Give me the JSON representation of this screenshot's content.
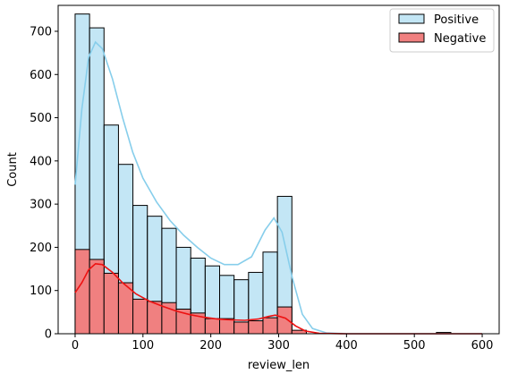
{
  "chart_data": {
    "type": "histogram",
    "xlabel": "review_len",
    "ylabel": "Count",
    "xlim": [
      -25,
      625
    ],
    "ylim": [
      0,
      760
    ],
    "xticks": [
      0,
      100,
      200,
      300,
      400,
      500,
      600
    ],
    "yticks": [
      0,
      100,
      200,
      300,
      400,
      500,
      600,
      700
    ],
    "grid": false,
    "legend_position": "top-right",
    "series": [
      {
        "name": "Positive",
        "color": "#87ceeb",
        "bin_width": 21.3,
        "bins": [
          {
            "x0": 0,
            "value": 740
          },
          {
            "x0": 21.3,
            "value": 708
          },
          {
            "x0": 42.6,
            "value": 483
          },
          {
            "x0": 63.9,
            "value": 392
          },
          {
            "x0": 85.2,
            "value": 297
          },
          {
            "x0": 106.5,
            "value": 272
          },
          {
            "x0": 127.8,
            "value": 244
          },
          {
            "x0": 149.1,
            "value": 200
          },
          {
            "x0": 170.4,
            "value": 175
          },
          {
            "x0": 191.7,
            "value": 157
          },
          {
            "x0": 213.0,
            "value": 135
          },
          {
            "x0": 234.3,
            "value": 125
          },
          {
            "x0": 255.6,
            "value": 142
          },
          {
            "x0": 276.9,
            "value": 189
          },
          {
            "x0": 298.2,
            "value": 318
          },
          {
            "x0": 319.5,
            "value": 5
          }
        ],
        "kde": [
          [
            0,
            345
          ],
          [
            10,
            520
          ],
          [
            20,
            640
          ],
          [
            30,
            675
          ],
          [
            40,
            660
          ],
          [
            55,
            590
          ],
          [
            70,
            500
          ],
          [
            85,
            420
          ],
          [
            100,
            360
          ],
          [
            120,
            305
          ],
          [
            140,
            262
          ],
          [
            160,
            228
          ],
          [
            180,
            200
          ],
          [
            200,
            175
          ],
          [
            220,
            160
          ],
          [
            240,
            160
          ],
          [
            260,
            178
          ],
          [
            280,
            240
          ],
          [
            293,
            268
          ],
          [
            305,
            235
          ],
          [
            320,
            130
          ],
          [
            335,
            45
          ],
          [
            350,
            12
          ],
          [
            370,
            2
          ],
          [
            400,
            0
          ],
          [
            600,
            0
          ]
        ]
      },
      {
        "name": "Negative",
        "color": "#f08080",
        "bin_width": 21.3,
        "bins": [
          {
            "x0": 0,
            "value": 195
          },
          {
            "x0": 21.3,
            "value": 172
          },
          {
            "x0": 42.6,
            "value": 140
          },
          {
            "x0": 63.9,
            "value": 118
          },
          {
            "x0": 85.2,
            "value": 80
          },
          {
            "x0": 106.5,
            "value": 75
          },
          {
            "x0": 127.8,
            "value": 72
          },
          {
            "x0": 149.1,
            "value": 57
          },
          {
            "x0": 170.4,
            "value": 48
          },
          {
            "x0": 191.7,
            "value": 35
          },
          {
            "x0": 213.0,
            "value": 35
          },
          {
            "x0": 234.3,
            "value": 27
          },
          {
            "x0": 255.6,
            "value": 30
          },
          {
            "x0": 276.9,
            "value": 37
          },
          {
            "x0": 298.2,
            "value": 62
          },
          {
            "x0": 319.5,
            "value": 8
          },
          {
            "x0": 532.5,
            "value": 3
          }
        ],
        "kde": [
          [
            0,
            95
          ],
          [
            10,
            118
          ],
          [
            20,
            148
          ],
          [
            30,
            162
          ],
          [
            40,
            160
          ],
          [
            55,
            142
          ],
          [
            70,
            118
          ],
          [
            90,
            92
          ],
          [
            110,
            75
          ],
          [
            130,
            63
          ],
          [
            150,
            52
          ],
          [
            170,
            44
          ],
          [
            190,
            38
          ],
          [
            210,
            34
          ],
          [
            230,
            32
          ],
          [
            250,
            31
          ],
          [
            270,
            34
          ],
          [
            285,
            40
          ],
          [
            295,
            43
          ],
          [
            310,
            36
          ],
          [
            325,
            18
          ],
          [
            340,
            6
          ],
          [
            360,
            1
          ],
          [
            400,
            0
          ],
          [
            600,
            0
          ]
        ]
      }
    ]
  }
}
